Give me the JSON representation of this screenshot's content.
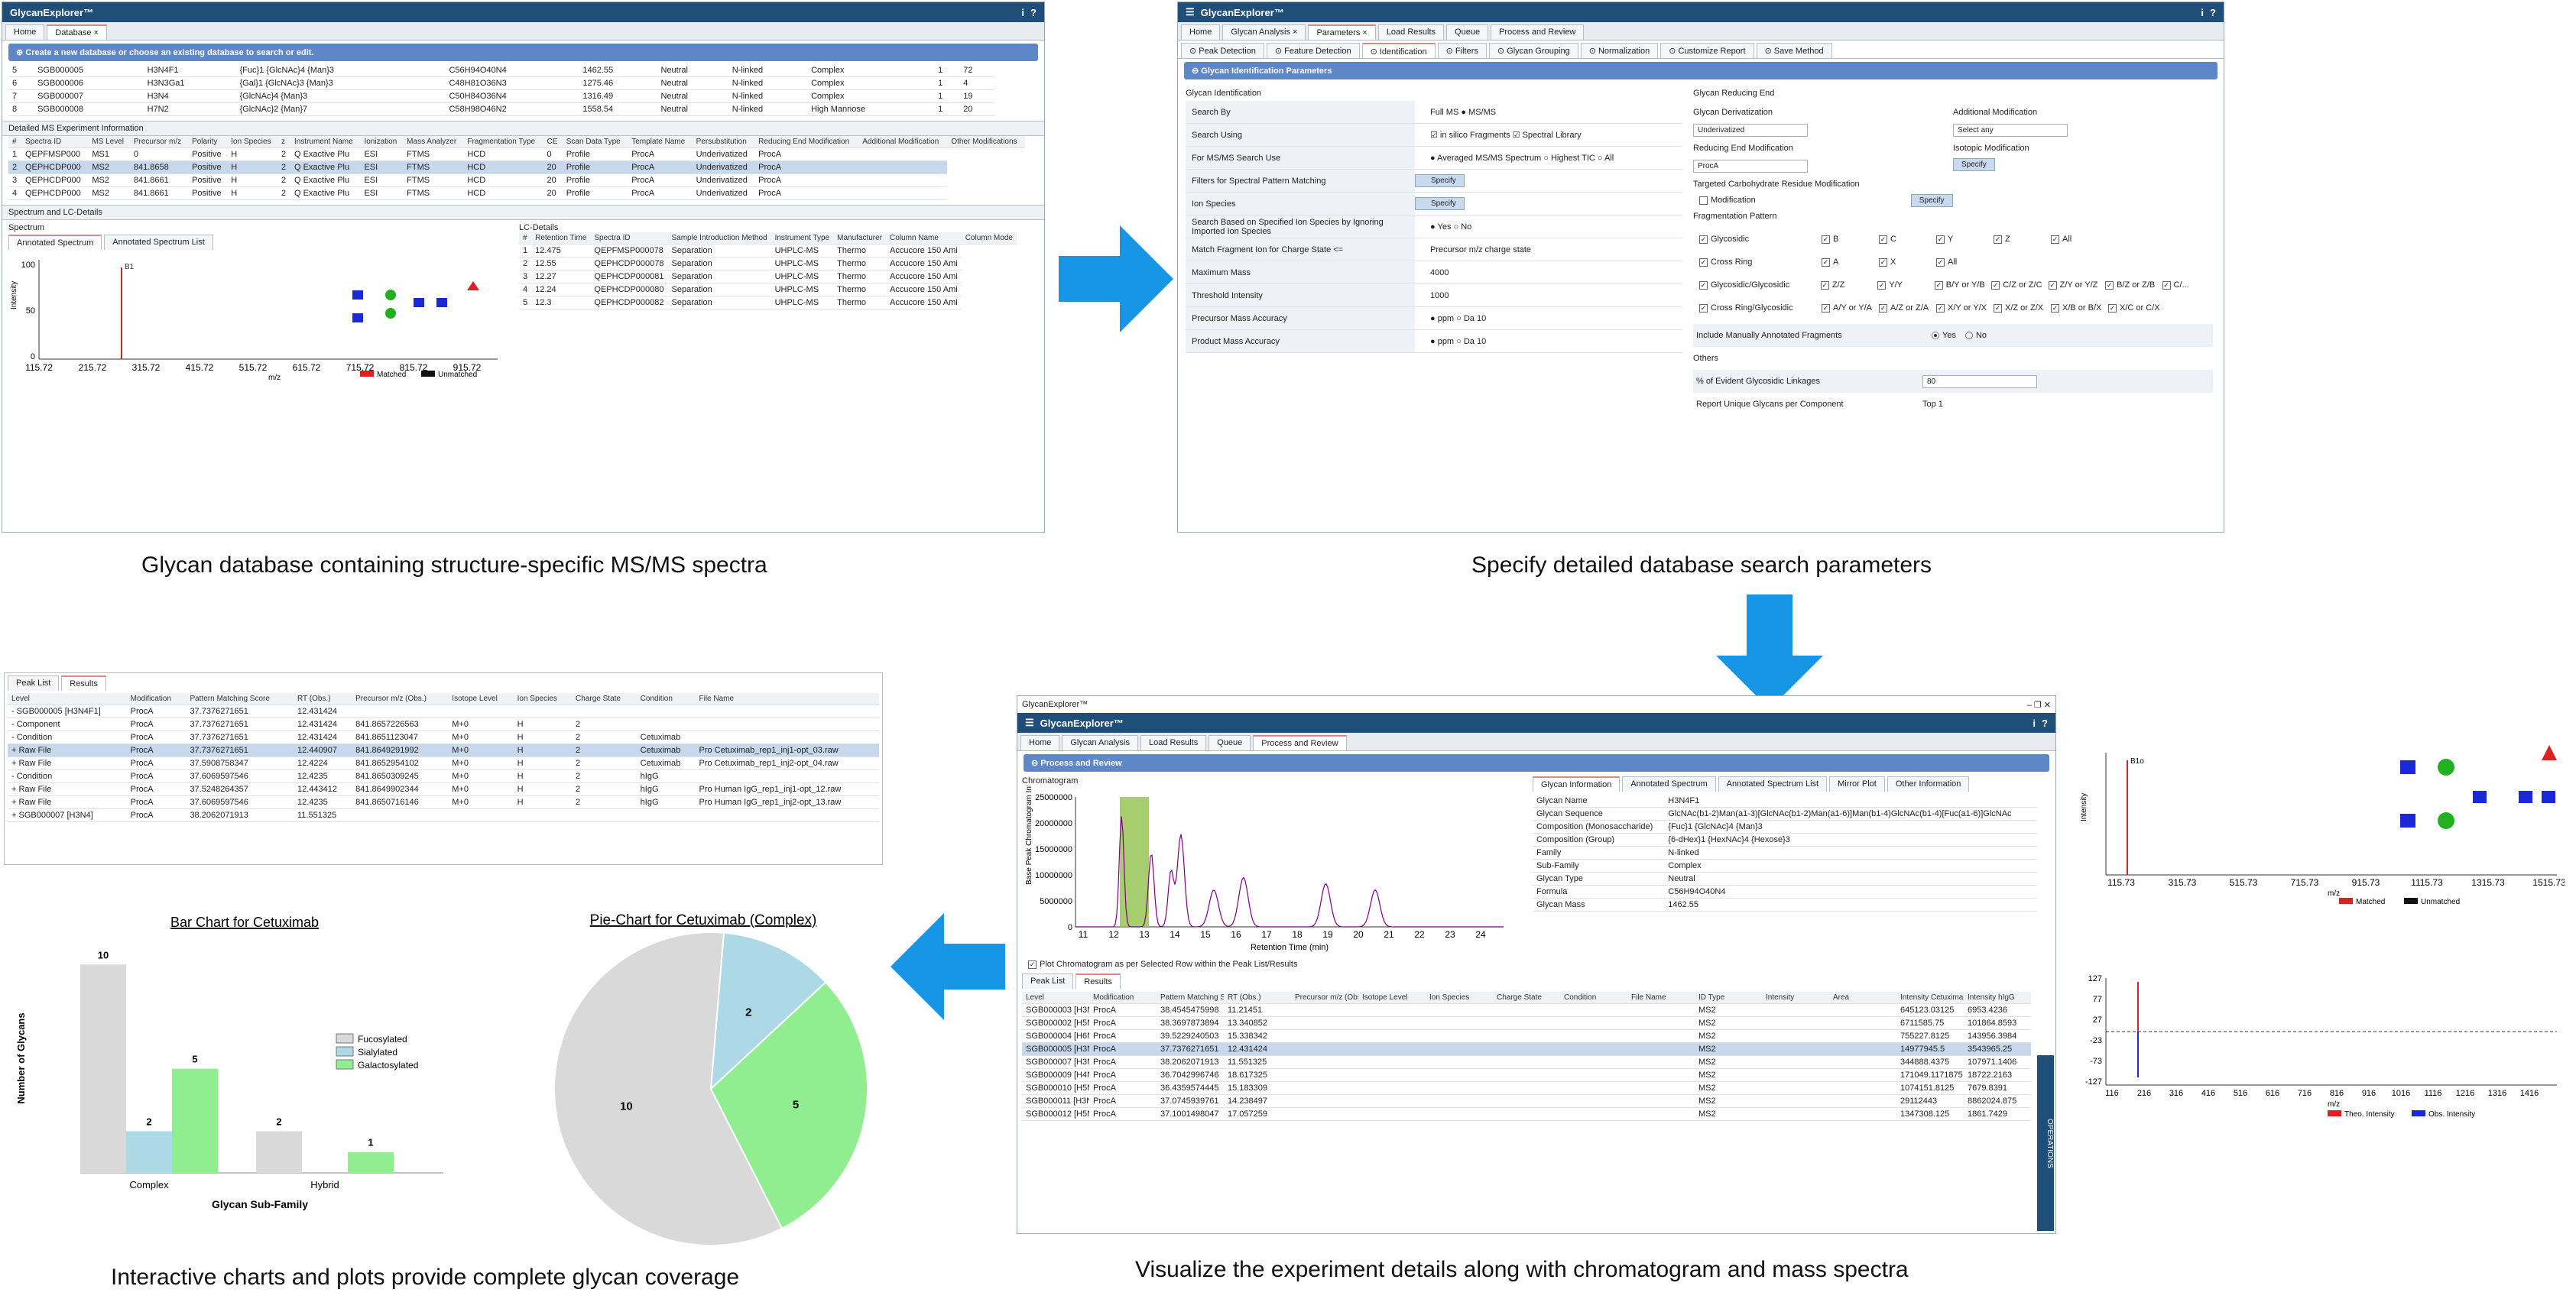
{
  "captions": {
    "p1": "Glycan database containing structure-specific MS/MS spectra",
    "p2": "Specify detailed database search parameters",
    "p3": "Visualize the experiment details along with chromatogram and mass spectra",
    "p4": "Interactive charts and plots provide complete glycan coverage"
  },
  "app": {
    "name": "GlycanExplorer™",
    "info_icon": "i",
    "help_icon": "?"
  },
  "p1": {
    "tabs": [
      "Home",
      "Database ×"
    ],
    "banner": "Create a new database or choose an existing database to search or edit.",
    "db_rows": [
      [
        "5",
        "SGB000005",
        "H3N4F1",
        "{Fuc}1 {GlcNAc}4 {Man}3",
        "C56H94O40N4",
        "1462.55",
        "Neutral",
        "N-linked",
        "Complex",
        "1",
        "72"
      ],
      [
        "6",
        "SGB000006",
        "H3N3Ga1",
        "{Gal}1 {GlcNAc}3 {Man}3",
        "C48H81O36N3",
        "1275.46",
        "Neutral",
        "N-linked",
        "Complex",
        "1",
        "4"
      ],
      [
        "7",
        "SGB000007",
        "H3N4",
        "{GlcNAc}4 {Man}3",
        "C50H84O36N4",
        "1316.49",
        "Neutral",
        "N-linked",
        "Complex",
        "1",
        "19"
      ],
      [
        "8",
        "SGB000008",
        "H7N2",
        "{GlcNAc}2 {Man}7",
        "C58H98O46N2",
        "1558.54",
        "Neutral",
        "N-linked",
        "High Mannose",
        "1",
        "20"
      ]
    ],
    "ms_header": "Detailed MS Experiment Information",
    "ms_cols": [
      "Spectra ID",
      "MS Level",
      "Precursor m/z",
      "Polarity",
      "Ion Species",
      "z",
      "Instrument Name",
      "Ionization",
      "Mass Analyzer",
      "Fragmentation Type",
      "CE",
      "Scan Data Type",
      "Template Name",
      "Persubstitution",
      "Reducing End Modification",
      "Additional Modification",
      "Other Modifications"
    ],
    "ms_rows": [
      [
        "1",
        "QEPFMSP000",
        "MS1",
        "0",
        "Positive",
        "H",
        "2",
        "Q Exactive Plu",
        "ESI",
        "FTMS",
        "HCD",
        "0",
        "Profile",
        "ProcA",
        "Underivatized",
        "ProcA",
        ""
      ],
      [
        "2",
        "QEPHCDP000",
        "MS2",
        "841.8658",
        "Positive",
        "H",
        "2",
        "Q Exactive Plu",
        "ESI",
        "FTMS",
        "HCD",
        "20",
        "Profile",
        "ProcA",
        "Underivatized",
        "ProcA",
        ""
      ],
      [
        "3",
        "QEPHCDP000",
        "MS2",
        "841.8661",
        "Positive",
        "H",
        "2",
        "Q Exactive Plu",
        "ESI",
        "FTMS",
        "HCD",
        "20",
        "Profile",
        "ProcA",
        "Underivatized",
        "ProcA",
        ""
      ],
      [
        "4",
        "QEPHCDP000",
        "MS2",
        "841.8661",
        "Positive",
        "H",
        "2",
        "Q Exactive Plu",
        "ESI",
        "FTMS",
        "HCD",
        "20",
        "Profile",
        "ProcA",
        "Underivatized",
        "ProcA",
        ""
      ]
    ],
    "spec_header": "Spectrum and LC-Details",
    "spectrum_label": "Spectrum",
    "spec_tabs": [
      "Annotated Spectrum",
      "Annotated Spectrum List"
    ],
    "lc_label": "LC-Details",
    "lc_cols": [
      "Retention Time",
      "Spectra ID",
      "Sample Introduction Method",
      "Instrument Type",
      "Manufacturer",
      "Column Name",
      "Column Mode"
    ],
    "lc_rows": [
      [
        "1",
        "12.475",
        "QEPFMSP000078",
        "Separation",
        "UHPLC-MS",
        "Thermo",
        "Accucore 150 Ami"
      ],
      [
        "2",
        "12.55",
        "QEPHCDP000078",
        "Separation",
        "UHPLC-MS",
        "Thermo",
        "Accucore 150 Ami"
      ],
      [
        "3",
        "12.27",
        "QEPHCDP000081",
        "Separation",
        "UHPLC-MS",
        "Thermo",
        "Accucore 150 Ami"
      ],
      [
        "4",
        "12.24",
        "QEPHCDP000080",
        "Separation",
        "UHPLC-MS",
        "Thermo",
        "Accucore 150 Ami"
      ],
      [
        "5",
        "12.3",
        "QEPHCDP000082",
        "Separation",
        "UHPLC-MS",
        "Thermo",
        "Accucore 150 Ami"
      ]
    ],
    "spec_x": [
      "115.72",
      "215.72",
      "315.72",
      "415.72",
      "515.72",
      "615.72",
      "715.72",
      "815.72",
      "915.72"
    ],
    "spec_y": [
      "100",
      "50",
      "0"
    ],
    "spec_peak": "B1\n204.0866",
    "spec_ylabel": "Intensity",
    "spec_xlabel": "m/z",
    "legend": [
      "Matched",
      "Unmatched"
    ],
    "side_label": "OPERATIONS"
  },
  "p2": {
    "tabs": [
      "Home",
      "Glycan Analysis ×",
      "Parameters ×",
      "Load Results",
      "Queue",
      "Process and Review"
    ],
    "subtabs": [
      "Peak Detection",
      "Feature Detection",
      "Identification",
      "Filters",
      "Glycan Grouping",
      "Normalization",
      "Customize Report",
      "Save Method"
    ],
    "banner": "Glycan Identification Parameters",
    "left_title": "Glycan Identification",
    "left_rows": [
      {
        "label": "Search By",
        "value": "Full MS     ● MS/MS"
      },
      {
        "label": "Search Using",
        "value": "☑ in silico Fragments   ☑ Spectral Library"
      },
      {
        "label": "For MS/MS Search Use",
        "value": "● Averaged MS/MS Spectrum   ○ Highest TIC   ○ All"
      },
      {
        "label": "Filters for Spectral Pattern Matching",
        "value": "Specify"
      },
      {
        "label": "Ion Species",
        "value": "Specify"
      },
      {
        "label": "Search Based on Specified Ion Species by Ignoring Imported Ion Species",
        "value": "● Yes   ○ No"
      },
      {
        "label": "Match Fragment Ion for Charge State <=",
        "value": "Precursor m/z charge state"
      },
      {
        "label": "Maximum Mass",
        "value": "4000"
      },
      {
        "label": "Threshold Intensity",
        "value": "1000"
      },
      {
        "label": "Precursor Mass Accuracy",
        "value": "● ppm  ○ Da   10"
      },
      {
        "label": "Product Mass Accuracy",
        "value": "● ppm  ○ Da   10"
      }
    ],
    "right_title": "Glycan Reducing End",
    "deriv_label": "Glycan Derivatization",
    "deriv_val": "Underivatized",
    "addmod_label": "Additional Modification",
    "addmod_val": "Select any",
    "redmod_label": "Reducing End Modification",
    "redmod_val": "ProcA",
    "iso_label": "Isotopic Modification",
    "iso_btn": "Specify",
    "carb_label": "Targeted Carbohydrate Residue Modification",
    "carb_mod": "Modification",
    "carb_btn": "Specify",
    "frag_label": "Fragmentation Pattern",
    "frag_rows": [
      [
        "Glycosidic",
        "B",
        "C",
        "Y",
        "Z",
        "All"
      ],
      [
        "Cross Ring",
        "A",
        "X",
        "All",
        "",
        ""
      ],
      [
        "Glycosidic/Glycosidic",
        "Z/Z",
        "Y/Y",
        "B/Y or Y/B",
        "C/Z or Z/C",
        "Z/Y or Y/Z",
        "B/Z or Z/B",
        "C/..."
      ],
      [
        "Cross Ring/Glycosidic",
        "A/Y or Y/A",
        "A/Z or Z/A",
        "X/Y or Y/X",
        "X/Z or Z/X",
        "X/B or B/X",
        "X/C or C/X",
        ""
      ]
    ],
    "include_label": "Include Manually Annotated Fragments",
    "include_yes": "Yes",
    "include_no": "No",
    "others_label": "Others",
    "evident_label": "% of Evident Glycosidic Linkages",
    "evident_val": "80",
    "report_label": "Report Unique Glycans per Component",
    "report_val": "Top   1"
  },
  "p3": {
    "tabs": [
      "Home",
      "Glycan Analysis",
      "Load Results",
      "Queue",
      "Process and Review"
    ],
    "banner": "Process and Review",
    "chrom_title": "Chromatogram",
    "chrom_ylabel": "Base Peak Chromatogram Intensity",
    "chrom_xlabel": "Retention Time (min)",
    "chrom_y": [
      "25000000",
      "20000000",
      "15000000",
      "10000000",
      "5000000",
      "0"
    ],
    "chrom_x": [
      "11",
      "12",
      "13",
      "14",
      "15",
      "16",
      "17",
      "18",
      "19",
      "20",
      "21",
      "22",
      "23",
      "24"
    ],
    "plot_check": "Plot Chromatogram as per Selected Row within the Peak List/Results",
    "info_tabs": [
      "Glycan Information",
      "Annotated Spectrum",
      "Annotated Spectrum List",
      "Mirror Plot",
      "Other Information"
    ],
    "info_rows": [
      [
        "Glycan Name",
        "H3N4F1"
      ],
      [
        "Glycan Sequence",
        "GlcNAc(b1-2)Man(a1-3)[GlcNAc(b1-2)Man(a1-6)]Man(b1-4)GlcNAc(b1-4)[Fuc(a1-6)]GlcNAc"
      ],
      [
        "Composition (Monosaccharide)",
        "{Fuc}1 {GlcNAc}4 {Man}3"
      ],
      [
        "Composition (Group)",
        "{6-dHex}1 {HexNAc}4 {Hexose}3"
      ],
      [
        "Family",
        "N-linked"
      ],
      [
        "Sub-Family",
        "Complex"
      ],
      [
        "Glycan Type",
        "Neutral"
      ],
      [
        "Formula",
        "C56H94O40N4"
      ],
      [
        "Glycan Mass",
        "1462.55"
      ]
    ],
    "bottom_tabs": [
      "Peak List",
      "Results"
    ],
    "res_cols": [
      "Level",
      "Modification",
      "Pattern Matching Score",
      "RT (Obs.)",
      "Precursor m/z (Obs.)",
      "Isotope Level",
      "Ion Species",
      "Charge State",
      "Condition",
      "File Name",
      "ID Type",
      "Intensity",
      "Area",
      "Intensity Cetuximab",
      "Intensity hIgG"
    ],
    "res_rows": [
      [
        "SGB000003 [H3N4F1]",
        "ProcA",
        "38.4545475998",
        "11.21451",
        "",
        "",
        "",
        "",
        "",
        "",
        "MS2",
        "",
        "",
        "645123.03125",
        "6953.4236"
      ],
      [
        "SGB000002 [H5N2]",
        "ProcA",
        "38.3697873894",
        "13.340852",
        "",
        "",
        "",
        "",
        "",
        "",
        "MS2",
        "",
        "",
        "6711585.75",
        "101864.8593"
      ],
      [
        "SGB000004 [H6N2]",
        "ProcA",
        "39.5229240503",
        "15.338342",
        "",
        "",
        "",
        "",
        "",
        "",
        "MS2",
        "",
        "",
        "755227.8125",
        "143956.3984"
      ],
      [
        "SGB000005 [H3N4F1]",
        "ProcA",
        "37.7376271651",
        "12.431424",
        "",
        "",
        "",
        "",
        "",
        "",
        "MS2",
        "",
        "",
        "14977945.5",
        "3543965.25"
      ],
      [
        "SGB000007 [H3N4]",
        "ProcA",
        "38.2062071913",
        "11.551325",
        "",
        "",
        "",
        "",
        "",
        "",
        "MS2",
        "",
        "",
        "344888.4375",
        "107971.1406"
      ],
      [
        "SGB000009 [H4N3F1Ga1Sg1]",
        "ProcA",
        "36.7042996746",
        "18.617325",
        "",
        "",
        "",
        "",
        "",
        "",
        "MS2",
        "",
        "",
        "171049.1171875",
        "18722.2163"
      ],
      [
        "SGB000010 [H5N3F1]",
        "ProcA",
        "36.4359574445",
        "15.183309",
        "",
        "",
        "",
        "",
        "",
        "",
        "MS2",
        "",
        "",
        "1074151.8125",
        "7679.8391"
      ],
      [
        "SGB000011 [H3N4F1Ga1]",
        "ProcA",
        "37.0745939761",
        "14.238497",
        "",
        "",
        "",
        "",
        "",
        "",
        "MS2",
        "",
        "",
        "29112443",
        "8862024.875"
      ],
      [
        "SGB000012 [H5N3F1Ga1]",
        "ProcA",
        "37.1001498047",
        "17.057259",
        "",
        "",
        "",
        "",
        "",
        "",
        "MS2",
        "",
        "",
        "1347308.125",
        "1861.7429"
      ]
    ],
    "side_label": "OPERATIONS",
    "spec1_x": [
      "115.73",
      "315.73",
      "515.73",
      "715.73",
      "915.73",
      "1115.73",
      "1315.73",
      "1515.73"
    ],
    "spec1_peak": "B1o\n204.0864",
    "spec1_legend": [
      "Matched",
      "Unmatched"
    ],
    "spec2_x": [
      "116",
      "216",
      "316",
      "416",
      "516",
      "616",
      "716",
      "816",
      "916",
      "1016",
      "1116",
      "1216",
      "1316",
      "1416"
    ],
    "spec2_y": [
      "127",
      "77",
      "27",
      "-23",
      "-73",
      "-127"
    ],
    "spec2_legend": [
      "Theo. Intensity",
      "Obs. Intensity"
    ],
    "spec_ylabel": "Intensity",
    "spec_xlabel": "m/z"
  },
  "p4": {
    "tabs": [
      "Peak List",
      "Results"
    ],
    "cols": [
      "Level",
      "Modification",
      "Pattern Matching Score",
      "RT (Obs.)",
      "Precursor m/z (Obs.)",
      "Isotope Level",
      "Ion Species",
      "Charge State",
      "Condition",
      "File Name"
    ],
    "rows": [
      [
        "- SGB000005 [H3N4F1]",
        "ProcA",
        "37.7376271651",
        "12.431424",
        "",
        "",
        "",
        "",
        "",
        ""
      ],
      [
        "  - Component",
        "ProcA",
        "37.7376271651",
        "12.431424",
        "841.8657226563",
        "M+0",
        "H",
        "2",
        "",
        ""
      ],
      [
        "    - Condition",
        "ProcA",
        "37.7376271651",
        "12.431424",
        "841.8651123047",
        "M+0",
        "H",
        "2",
        "Cetuximab",
        ""
      ],
      [
        "      + Raw File",
        "ProcA",
        "37.7376271651",
        "12.440907",
        "841.8649291992",
        "M+0",
        "H",
        "2",
        "Cetuximab",
        "Pro Cetuximab_rep1_inj1-opt_03.raw"
      ],
      [
        "      + Raw File",
        "ProcA",
        "37.5908758347",
        "12.4224",
        "841.8652954102",
        "M+0",
        "H",
        "2",
        "Cetuximab",
        "Pro Cetuximab_rep1_inj2-opt_04.raw"
      ],
      [
        "    - Condition",
        "ProcA",
        "37.6069597546",
        "12.4235",
        "841.8650309245",
        "M+0",
        "H",
        "2",
        "hIgG",
        ""
      ],
      [
        "      + Raw File",
        "ProcA",
        "37.5248264357",
        "12.443412",
        "841.8649902344",
        "M+0",
        "H",
        "2",
        "hIgG",
        "Pro Human IgG_rep1_inj1-opt_12.raw"
      ],
      [
        "      + Raw File",
        "ProcA",
        "37.6069597546",
        "12.4235",
        "841.8650716146",
        "M+0",
        "H",
        "2",
        "hIgG",
        "Pro Human IgG_rep1_inj2-opt_13.raw"
      ],
      [
        "+ SGB000007 [H3N4]",
        "ProcA",
        "38.2062071913",
        "11.551325",
        "",
        "",
        "",
        "",
        "",
        ""
      ]
    ]
  },
  "chart_data": [
    {
      "type": "bar",
      "title": "Bar Chart for Cetuximab",
      "xlabel": "Glycan Sub-Family",
      "ylabel": "Number of Glycans",
      "categories": [
        "Complex",
        "Hybrid"
      ],
      "series": [
        {
          "name": "Fucosylated",
          "values": [
            10,
            2
          ],
          "color": "#d9d9d9"
        },
        {
          "name": "Sialylated",
          "values": [
            2,
            0
          ],
          "color": "#add8e6"
        },
        {
          "name": "Galactosylated",
          "values": [
            5,
            1
          ],
          "color": "#90ee90"
        }
      ],
      "ylim": [
        0,
        11
      ]
    },
    {
      "type": "pie",
      "title": "Pie-Chart for Cetuximab (Complex)",
      "slices": [
        {
          "value": 10,
          "color": "#d9d9d9"
        },
        {
          "value": 2,
          "color": "#add8e6"
        },
        {
          "value": 5,
          "color": "#90ee90"
        }
      ]
    }
  ]
}
